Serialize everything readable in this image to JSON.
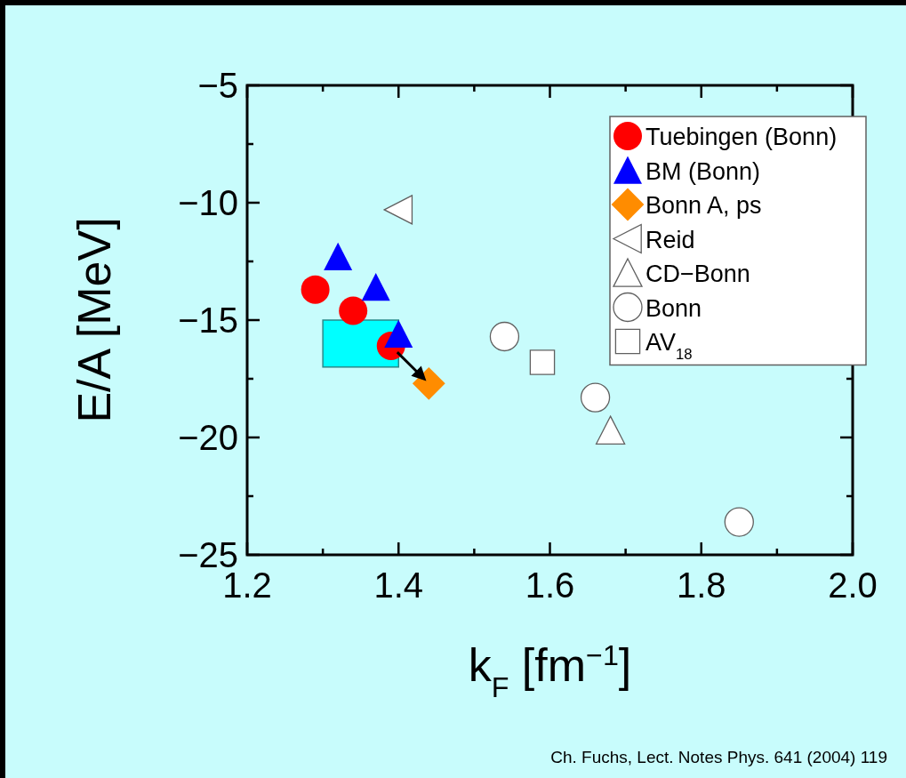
{
  "chart_data": {
    "type": "scatter",
    "xlabel": "k$_{F}$ [fm$^{−1}$]",
    "ylabel": "E/A [MeV]",
    "xlim": [
      1.2,
      2.0
    ],
    "ylim": [
      -25,
      -5
    ],
    "xticks": [
      {
        "value": 1.2,
        "label": "1.2"
      },
      {
        "value": 1.3,
        "label": null
      },
      {
        "value": 1.4,
        "label": "1.4"
      },
      {
        "value": 1.5,
        "label": null
      },
      {
        "value": 1.6,
        "label": "1.6"
      },
      {
        "value": 1.7,
        "label": null
      },
      {
        "value": 1.8,
        "label": "1.8"
      },
      {
        "value": 1.9,
        "label": null
      },
      {
        "value": 2.0,
        "label": "2.0"
      }
    ],
    "yticks": [
      {
        "value": -25,
        "label": "−25"
      },
      {
        "value": -22.5,
        "label": null
      },
      {
        "value": -20,
        "label": "−20"
      },
      {
        "value": -17.5,
        "label": null
      },
      {
        "value": -15,
        "label": "−15"
      },
      {
        "value": -12.5,
        "label": null
      },
      {
        "value": -10,
        "label": "−10"
      },
      {
        "value": -7.5,
        "label": null
      },
      {
        "value": -5,
        "label": "−5"
      }
    ],
    "grid": false,
    "legend": "top right",
    "series": [
      {
        "type": "bar",
        "color": "#00ffff",
        "x": [
          1.35
        ],
        "base": [
          -17
        ],
        "values": [
          2
        ]
      },
      {
        "name": "Tuebingen (Bonn)",
        "color": "#ff0000",
        "marker": "circle",
        "x": [
          1.29,
          1.34,
          1.39
        ],
        "values": [
          -13.7,
          -14.6,
          -16.1
        ]
      },
      {
        "name": "BM (Bonn)",
        "color": "#0000ff",
        "marker": "triangle",
        "x": [
          1.32,
          1.37,
          1.4
        ],
        "values": [
          -12.3,
          -13.6,
          -15.6
        ]
      },
      {
        "name": "Bonn A, ps",
        "color": "#ff8c00",
        "marker": "diamond",
        "x": [
          1.44
        ],
        "values": [
          -17.7
        ]
      },
      {
        "name": "Reid",
        "color": "#ffffff",
        "marker": "triangle-left",
        "x": [
          1.4
        ],
        "values": [
          -10.3
        ]
      },
      {
        "name": "CD−Bonn",
        "color": "#ffffff",
        "marker": "triangle",
        "x": [
          1.68
        ],
        "values": [
          -19.7
        ]
      },
      {
        "name": "Bonn",
        "color": "#ffffff",
        "marker": "circle",
        "x": [
          1.54,
          1.66,
          1.85
        ],
        "values": [
          -15.7,
          -18.3,
          -23.6
        ]
      },
      {
        "name": "AV$_{18}$",
        "color": "#ffffff",
        "marker": "square",
        "x": [
          1.59
        ],
        "values": [
          -16.8
        ]
      }
    ],
    "annotations": [
      "Ch. Fuchs, Lect. Notes Phys. 641 (2004) 119"
    ]
  }
}
